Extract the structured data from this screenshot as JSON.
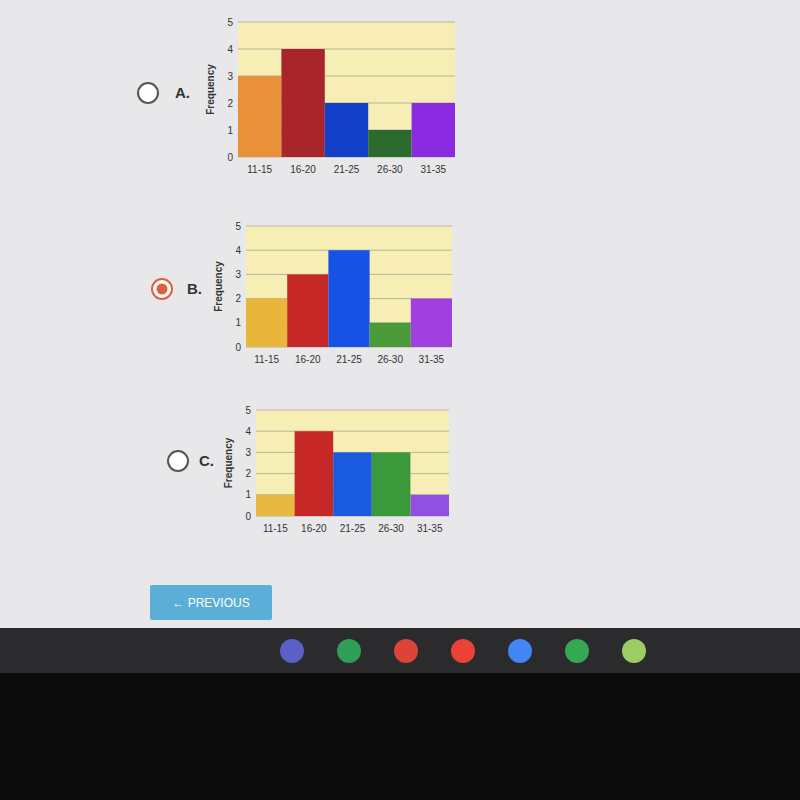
{
  "chart_data": [
    {
      "type": "bar",
      "y_label": "Frequency",
      "categories": [
        "11-15",
        "16-20",
        "21-25",
        "26-30",
        "31-35"
      ],
      "values": [
        3,
        4,
        2,
        1,
        2
      ],
      "colors": [
        "#e8913a",
        "#a8262b",
        "#1240c8",
        "#2d6a2d",
        "#8a2be2"
      ],
      "ylim": [
        0,
        5
      ],
      "yticks": [
        0,
        1,
        2,
        3,
        4,
        5
      ],
      "grid": true
    },
    {
      "type": "bar",
      "y_label": "Frequency",
      "categories": [
        "11-15",
        "16-20",
        "21-25",
        "26-30",
        "31-35"
      ],
      "values": [
        2,
        3,
        4,
        1,
        2
      ],
      "colors": [
        "#e9b53a",
        "#c62828",
        "#1652e6",
        "#4a9a3a",
        "#a040e0"
      ],
      "ylim": [
        0,
        5
      ],
      "yticks": [
        0,
        1,
        2,
        3,
        4,
        5
      ],
      "grid": true
    },
    {
      "type": "bar",
      "y_label": "Frequency",
      "categories": [
        "11-15",
        "16-20",
        "21-25",
        "26-30",
        "31-35"
      ],
      "values": [
        1,
        4,
        3,
        3,
        1
      ],
      "colors": [
        "#e8b840",
        "#c62828",
        "#1a5ae0",
        "#3a9a3a",
        "#9050e0"
      ],
      "ylim": [
        0,
        5
      ],
      "yticks": [
        0,
        1,
        2,
        3,
        4,
        5
      ],
      "grid": true
    }
  ],
  "options": [
    {
      "label": "A.",
      "selected": false
    },
    {
      "label": "B.",
      "selected": true
    },
    {
      "label": "C.",
      "selected": false
    }
  ],
  "button": {
    "text": "← PREVIOUS"
  }
}
